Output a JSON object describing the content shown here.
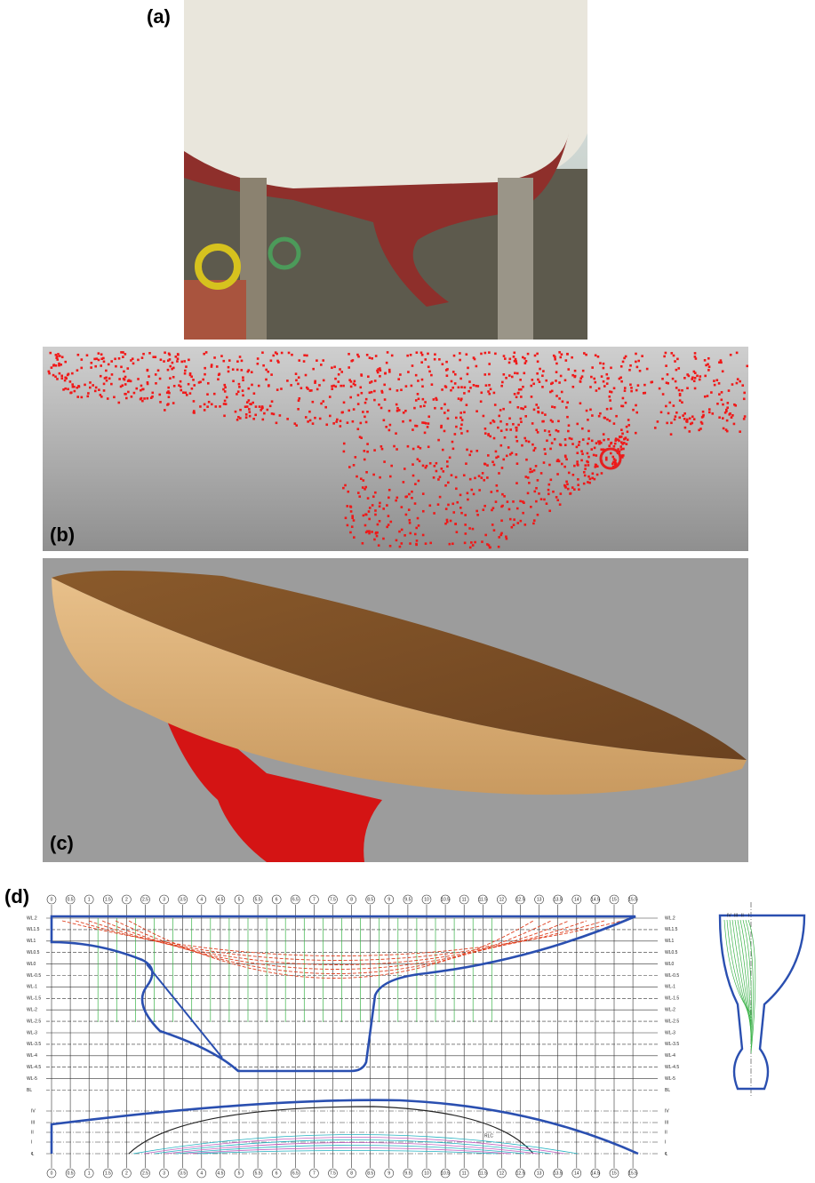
{
  "panels": {
    "a": "(a)",
    "b": "(b)",
    "c": "(c)",
    "d": "(d)"
  },
  "lines_plan": {
    "stations": [
      "0",
      "0.5",
      "1",
      "1.5",
      "2",
      "2.5",
      "3",
      "3.5",
      "4",
      "4.5",
      "5",
      "5.5",
      "6",
      "6.5",
      "7",
      "7.5",
      "8",
      "8.5",
      "9",
      "9.5",
      "10",
      "10.5",
      "11",
      "11.5",
      "12",
      "12.5",
      "13",
      "13.5",
      "14",
      "14.5",
      "15",
      "15.5"
    ],
    "waterlines": [
      "WL.2",
      "WL1.5",
      "WL1",
      "WL0.5",
      "WL0",
      "WL-0.5",
      "WL-1",
      "WL-1.5",
      "WL-2",
      "WL-2.5",
      "WL-3",
      "WL-3.5",
      "WL-4",
      "WL-4.5",
      "WL-5",
      "BL"
    ],
    "half_breadth_lines": [
      "IV",
      "III",
      "II",
      "I",
      "℄"
    ],
    "body_plan_lines": [
      "IV",
      "III",
      "II",
      "I"
    ],
    "annotation": "RLC"
  }
}
